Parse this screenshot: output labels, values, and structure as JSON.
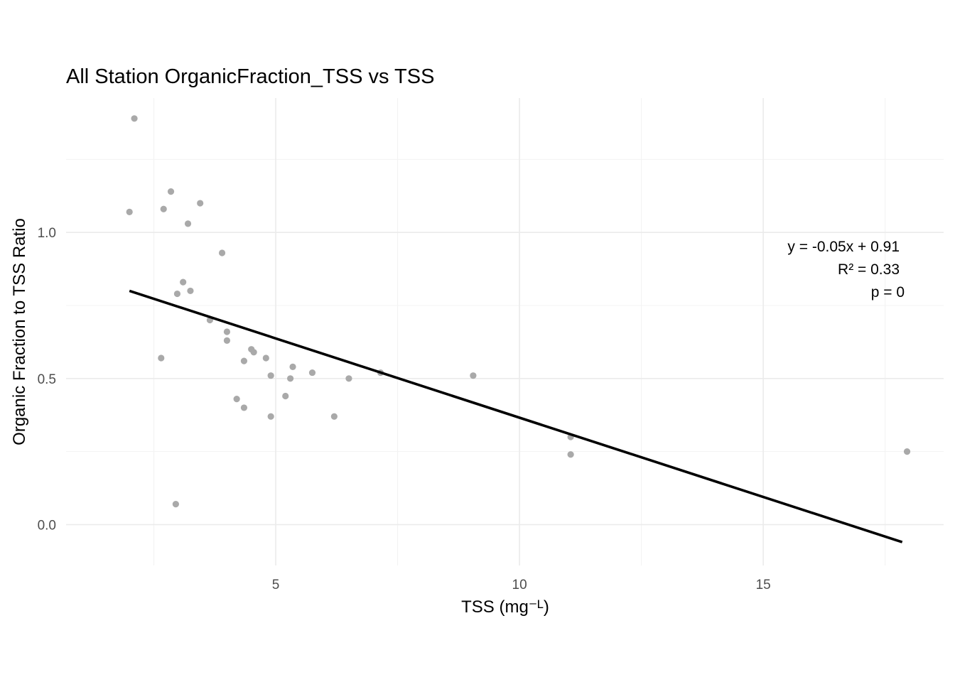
{
  "chart_data": {
    "type": "scatter",
    "title": "All Station OrganicFraction_TSS vs TSS",
    "xlabel": "TSS (mg⁻ᴸ)",
    "ylabel": "Organic Fraction to TSS Ratio",
    "xlim": [
      0.7,
      18.7
    ],
    "ylim": [
      -0.14,
      1.46
    ],
    "x_major_ticks": [
      5,
      10,
      15
    ],
    "x_minor_ticks": [
      2.5,
      7.5,
      12.5,
      17.5
    ],
    "y_major_ticks": [
      0.0,
      0.5,
      1.0
    ],
    "y_minor_ticks": [
      0.25,
      0.75,
      1.25
    ],
    "x_tick_labels": [
      "5",
      "10",
      "15"
    ],
    "y_tick_labels": [
      "0.0",
      "0.5",
      "1.0"
    ],
    "grid": true,
    "point_color": "#a9a9a9",
    "line_color": "#000000",
    "points": [
      {
        "x": 2.0,
        "y": 1.07
      },
      {
        "x": 2.1,
        "y": 1.39
      },
      {
        "x": 2.65,
        "y": 0.57
      },
      {
        "x": 2.7,
        "y": 1.08
      },
      {
        "x": 2.85,
        "y": 1.14
      },
      {
        "x": 2.95,
        "y": 0.07
      },
      {
        "x": 2.98,
        "y": 0.79
      },
      {
        "x": 3.1,
        "y": 0.83
      },
      {
        "x": 3.2,
        "y": 1.03
      },
      {
        "x": 3.25,
        "y": 0.8
      },
      {
        "x": 3.45,
        "y": 1.1
      },
      {
        "x": 3.65,
        "y": 0.7
      },
      {
        "x": 3.9,
        "y": 0.93
      },
      {
        "x": 4.0,
        "y": 0.66
      },
      {
        "x": 4.0,
        "y": 0.63
      },
      {
        "x": 4.2,
        "y": 0.43
      },
      {
        "x": 4.35,
        "y": 0.56
      },
      {
        "x": 4.35,
        "y": 0.4
      },
      {
        "x": 4.5,
        "y": 0.6
      },
      {
        "x": 4.55,
        "y": 0.59
      },
      {
        "x": 4.8,
        "y": 0.57
      },
      {
        "x": 4.9,
        "y": 0.51
      },
      {
        "x": 4.9,
        "y": 0.37
      },
      {
        "x": 5.2,
        "y": 0.44
      },
      {
        "x": 5.3,
        "y": 0.5
      },
      {
        "x": 5.35,
        "y": 0.54
      },
      {
        "x": 5.75,
        "y": 0.52
      },
      {
        "x": 6.2,
        "y": 0.37
      },
      {
        "x": 6.5,
        "y": 0.5
      },
      {
        "x": 7.15,
        "y": 0.52
      },
      {
        "x": 9.05,
        "y": 0.51
      },
      {
        "x": 11.05,
        "y": 0.3
      },
      {
        "x": 11.05,
        "y": 0.24
      },
      {
        "x": 17.95,
        "y": 0.25
      }
    ],
    "fit_line": {
      "x": [
        2.0,
        17.85
      ],
      "y": [
        0.8,
        -0.06
      ]
    },
    "annotations": [
      "y = -0.05x + 0.91",
      "R² = 0.33",
      "p = 0"
    ]
  }
}
